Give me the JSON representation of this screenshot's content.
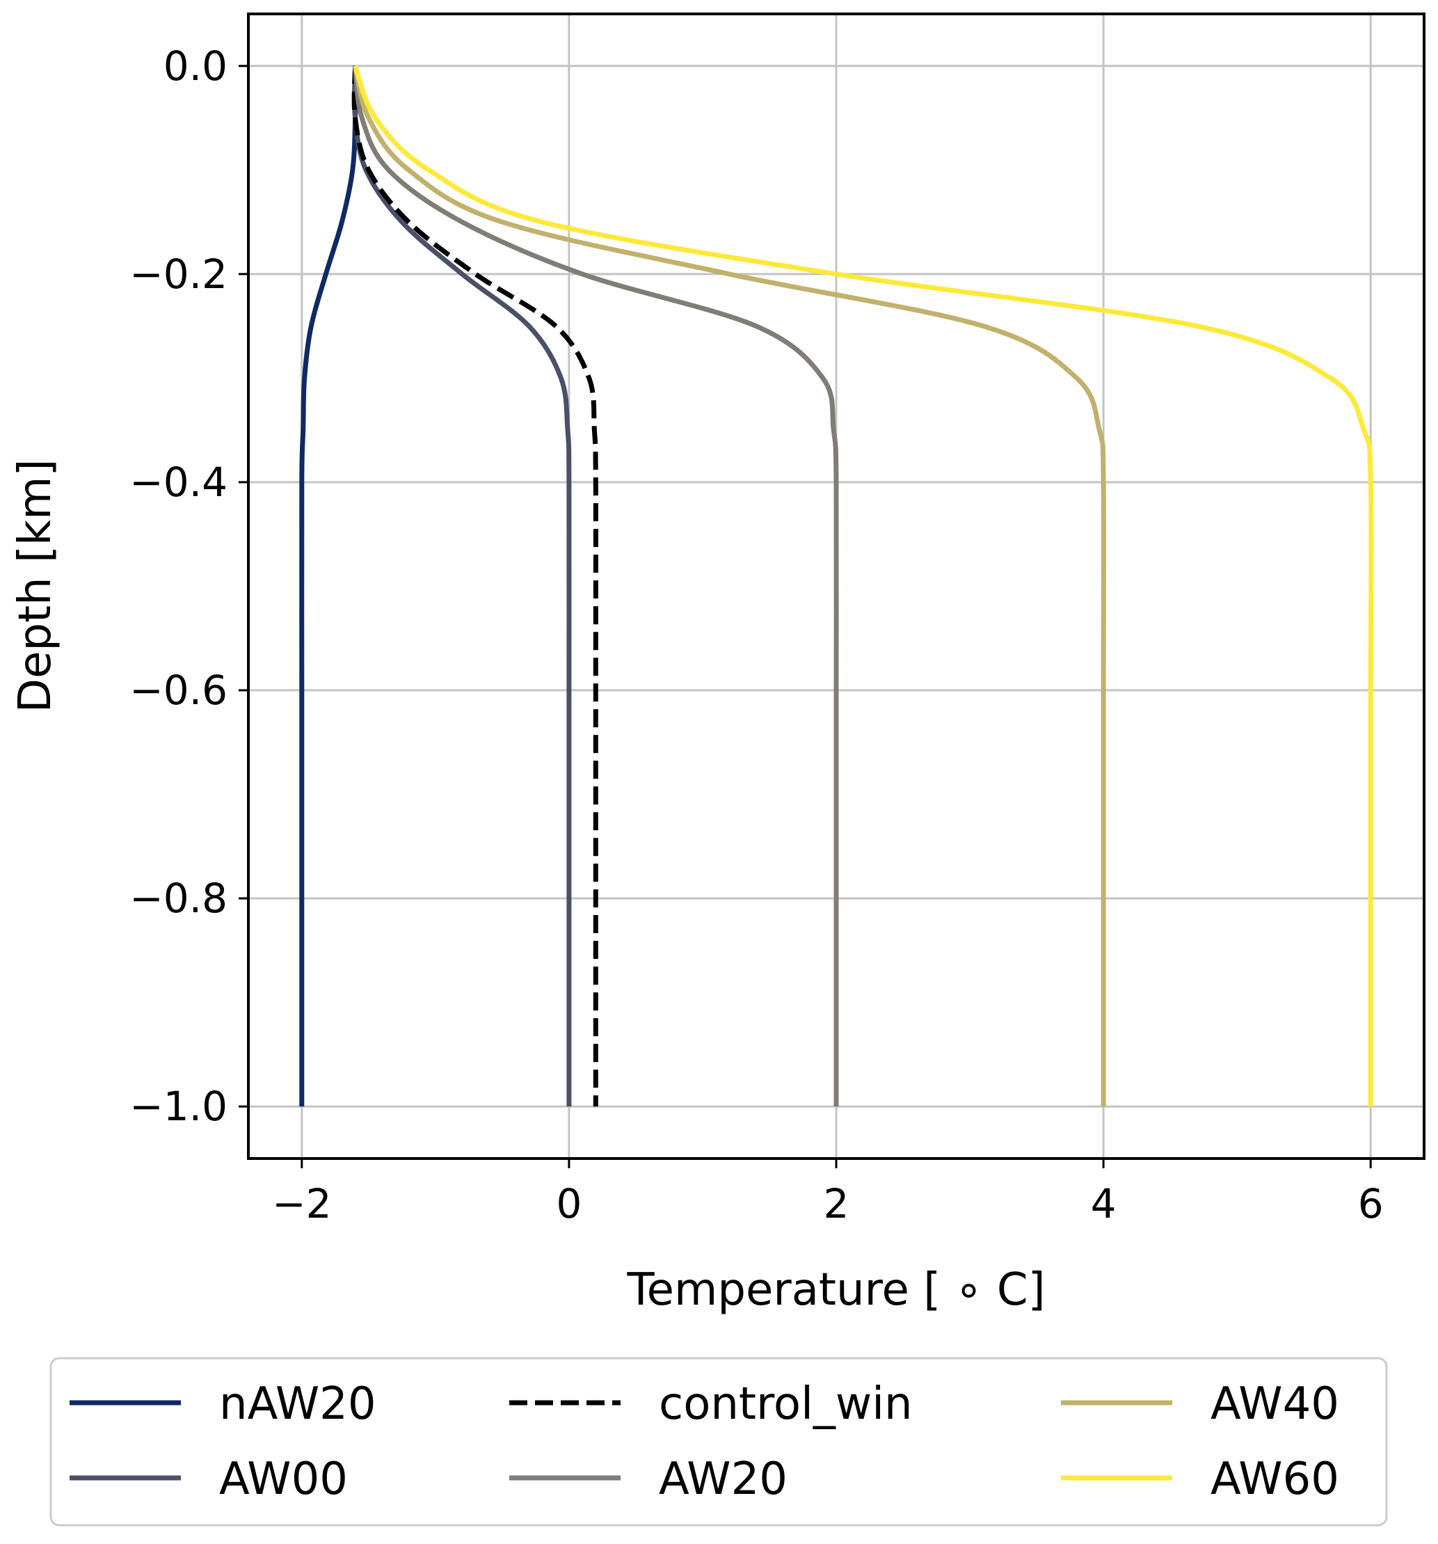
{
  "chart_data": {
    "type": "line",
    "xlabel": "Temperature [$^\\circ$ C]",
    "xlabel_display": "Temperature [ ∘  C]",
    "ylabel": "Depth [km]",
    "xlim": [
      -2.4,
      6.4
    ],
    "ylim": [
      -1.05,
      0.05
    ],
    "xticks": [
      -2,
      0,
      2,
      4,
      6
    ],
    "xtick_labels": [
      "−2",
      "0",
      "2",
      "4",
      "6"
    ],
    "yticks": [
      0.0,
      -0.2,
      -0.4,
      -0.6,
      -0.8,
      -1.0
    ],
    "ytick_labels": [
      "0.0",
      "−0.2",
      "−0.4",
      "−0.6",
      "−0.8",
      "−1.0"
    ],
    "grid": true,
    "legend_placement": "below plot, 3 columns",
    "surface_temperature": -1.6,
    "series": [
      {
        "name": "nAW20",
        "color": "#0f2a63",
        "dash": "solid",
        "points": [
          [
            -1.6,
            0.0
          ],
          [
            -1.6,
            -0.05
          ],
          [
            -1.62,
            -0.1
          ],
          [
            -1.7,
            -0.15
          ],
          [
            -1.82,
            -0.2
          ],
          [
            -1.93,
            -0.25
          ],
          [
            -1.98,
            -0.3
          ],
          [
            -1.99,
            -0.35
          ],
          [
            -2.0,
            -0.4
          ],
          [
            -2.0,
            -0.6
          ],
          [
            -2.0,
            -0.8
          ],
          [
            -2.0,
            -1.0
          ]
        ]
      },
      {
        "name": "AW00",
        "color": "#4a5068",
        "dash": "solid",
        "points": [
          [
            -1.6,
            0.0
          ],
          [
            -1.6,
            -0.05
          ],
          [
            -1.52,
            -0.1
          ],
          [
            -1.25,
            -0.15
          ],
          [
            -0.8,
            -0.2
          ],
          [
            -0.3,
            -0.25
          ],
          [
            -0.06,
            -0.3
          ],
          [
            -0.01,
            -0.35
          ],
          [
            0.0,
            -0.4
          ],
          [
            0.0,
            -0.6
          ],
          [
            0.0,
            -0.8
          ],
          [
            0.0,
            -1.0
          ]
        ]
      },
      {
        "name": "control_win",
        "color": "#000000",
        "dash": "dashed",
        "points": [
          [
            -1.6,
            0.0
          ],
          [
            -1.6,
            -0.05
          ],
          [
            -1.5,
            -0.1
          ],
          [
            -1.2,
            -0.15
          ],
          [
            -0.7,
            -0.2
          ],
          [
            -0.1,
            -0.25
          ],
          [
            0.15,
            -0.3
          ],
          [
            0.19,
            -0.35
          ],
          [
            0.2,
            -0.4
          ],
          [
            0.2,
            -0.6
          ],
          [
            0.2,
            -0.8
          ],
          [
            0.2,
            -1.0
          ]
        ]
      },
      {
        "name": "AW20",
        "color": "#7f7d76",
        "dash": "solid",
        "points": [
          [
            -1.6,
            0.0
          ],
          [
            -1.55,
            -0.05
          ],
          [
            -1.35,
            -0.1
          ],
          [
            -0.8,
            -0.15
          ],
          [
            0.1,
            -0.2
          ],
          [
            1.4,
            -0.25
          ],
          [
            1.9,
            -0.3
          ],
          [
            1.98,
            -0.35
          ],
          [
            2.0,
            -0.4
          ],
          [
            2.0,
            -0.6
          ],
          [
            2.0,
            -0.8
          ],
          [
            2.0,
            -1.0
          ]
        ]
      },
      {
        "name": "AW40",
        "color": "#c1b16c",
        "dash": "solid",
        "points": [
          [
            -1.6,
            0.0
          ],
          [
            -1.5,
            -0.05
          ],
          [
            -1.2,
            -0.1
          ],
          [
            -0.5,
            -0.15
          ],
          [
            1.2,
            -0.2
          ],
          [
            3.1,
            -0.25
          ],
          [
            3.8,
            -0.3
          ],
          [
            3.97,
            -0.35
          ],
          [
            4.0,
            -0.4
          ],
          [
            4.0,
            -0.6
          ],
          [
            4.0,
            -0.8
          ],
          [
            4.0,
            -1.0
          ]
        ]
      },
      {
        "name": "AW60",
        "color": "#fde93a",
        "dash": "solid",
        "points": [
          [
            -1.6,
            0.0
          ],
          [
            -1.45,
            -0.05
          ],
          [
            -1.05,
            -0.1
          ],
          [
            -0.2,
            -0.15
          ],
          [
            2.0,
            -0.2
          ],
          [
            4.7,
            -0.25
          ],
          [
            5.7,
            -0.3
          ],
          [
            5.95,
            -0.35
          ],
          [
            6.0,
            -0.4
          ],
          [
            6.0,
            -0.6
          ],
          [
            6.0,
            -0.8
          ],
          [
            6.0,
            -1.0
          ]
        ]
      }
    ],
    "legend": {
      "columns": [
        [
          "nAW20",
          "AW00"
        ],
        [
          "control_win",
          "AW20"
        ],
        [
          "AW40",
          "AW60"
        ]
      ]
    }
  }
}
